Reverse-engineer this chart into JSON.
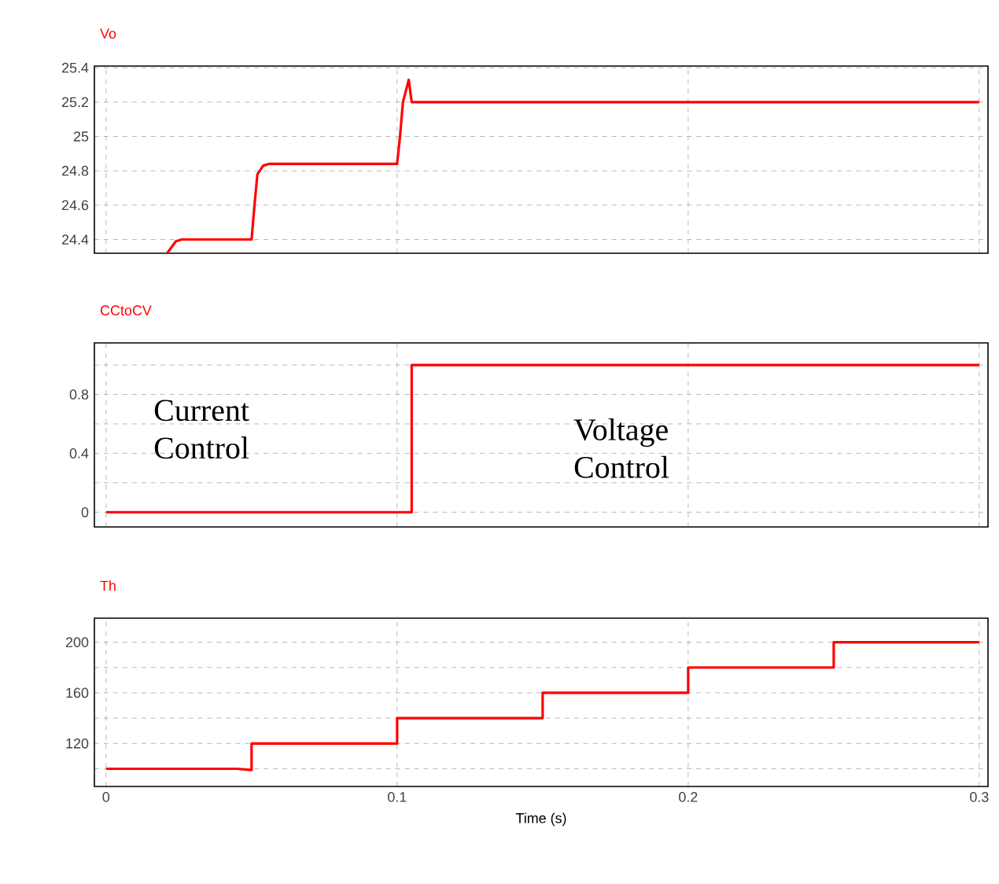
{
  "chart_data": [
    {
      "type": "line",
      "title": "Vo",
      "xlim": [
        -0.004,
        0.303
      ],
      "xticks": [
        0,
        0.1,
        0.2,
        0.3
      ],
      "ylim": [
        24.32,
        25.41
      ],
      "yticks": [
        24.4,
        24.6,
        24.8,
        25,
        25.2,
        25.4
      ],
      "grid": true,
      "tick_labels": "y",
      "series": [
        {
          "color": "#ff0000",
          "x": [
            0.021,
            0.024,
            0.026,
            0.05,
            0.051,
            0.052,
            0.054,
            0.056,
            0.1,
            0.101,
            0.102,
            0.104,
            0.105,
            0.3
          ],
          "values": [
            24.32,
            24.39,
            24.4,
            24.4,
            24.6,
            24.78,
            24.83,
            24.84,
            24.84,
            25.0,
            25.2,
            25.33,
            25.2,
            25.2
          ]
        }
      ]
    },
    {
      "type": "line",
      "title": "CCtoCV",
      "xlim": [
        -0.004,
        0.303
      ],
      "xticks": [
        0,
        0.1,
        0.2,
        0.3
      ],
      "ylim": [
        -0.1,
        1.15
      ],
      "yticks": [
        0,
        {
          "value": 0.2,
          "label": null
        },
        0.4,
        {
          "value": 0.6,
          "label": null
        },
        0.8,
        {
          "value": 1.0,
          "label": null
        }
      ],
      "grid": true,
      "tick_labels": "y",
      "annotations": [
        "Current Control",
        "Voltage Control"
      ],
      "series": [
        {
          "color": "#ff0000",
          "x": [
            0,
            0.105,
            0.105,
            0.3
          ],
          "values": [
            0,
            0,
            1,
            1
          ]
        }
      ]
    },
    {
      "type": "line",
      "title": "Th",
      "xlabel": "Time (s)",
      "xlim": [
        -0.004,
        0.303
      ],
      "xticks": [
        0,
        0.1,
        0.2,
        0.3
      ],
      "ylim": [
        86,
        219
      ],
      "yticks": [
        {
          "value": 100,
          "label": null
        },
        120,
        {
          "value": 140,
          "label": null
        },
        160,
        {
          "value": 180,
          "label": null
        },
        200
      ],
      "grid": true,
      "series": [
        {
          "color": "#ff0000",
          "x": [
            0,
            0.045,
            0.05,
            0.05,
            0.1,
            0.1,
            0.15,
            0.15,
            0.2,
            0.2,
            0.25,
            0.25,
            0.3
          ],
          "values": [
            100,
            100,
            99,
            120,
            120,
            140,
            140,
            160,
            160,
            180,
            180,
            200,
            200
          ]
        }
      ]
    }
  ]
}
